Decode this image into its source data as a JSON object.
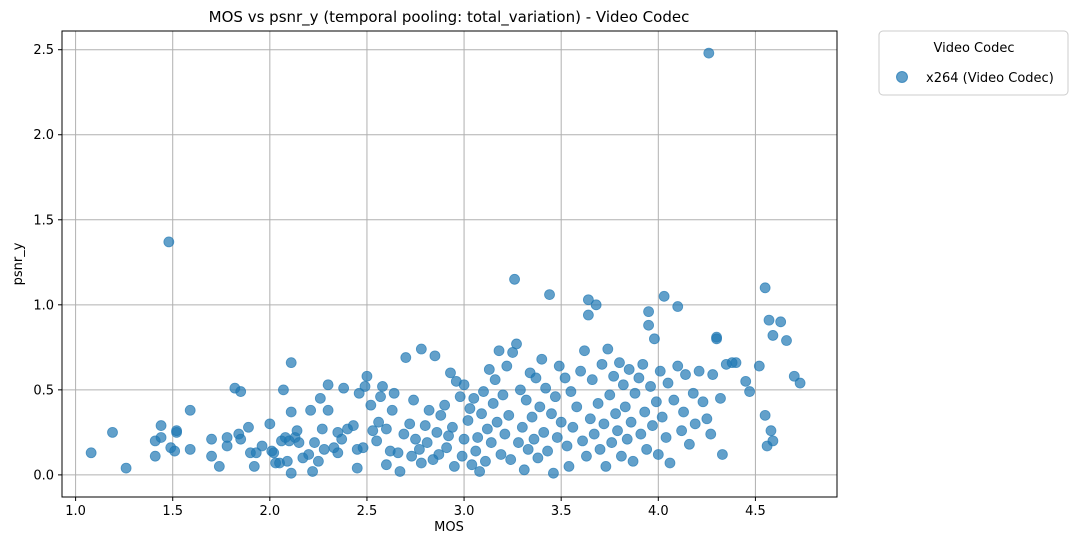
{
  "chart_data": {
    "type": "scatter",
    "title": "MOS vs psnr_y (temporal pooling: total_variation) - Video Codec",
    "xlabel": "MOS",
    "ylabel": "psnr_y",
    "xlim": [
      0.93,
      4.92
    ],
    "ylim": [
      -0.13,
      2.61
    ],
    "xticks": [
      1.0,
      1.5,
      2.0,
      2.5,
      3.0,
      3.5,
      4.0,
      4.5
    ],
    "yticks": [
      0.0,
      0.5,
      1.0,
      1.5,
      2.0,
      2.5
    ],
    "xtick_labels": [
      "1.0",
      "1.5",
      "2.0",
      "2.5",
      "3.0",
      "3.5",
      "4.0",
      "4.5"
    ],
    "ytick_labels": [
      "0.0",
      "0.5",
      "1.0",
      "1.5",
      "2.0",
      "2.5"
    ],
    "grid": true,
    "legend": {
      "title": "Video Codec",
      "placement": "outside-top-right"
    },
    "series": [
      {
        "name": "x264 (Video Codec)",
        "color": "#1f77b4",
        "points": [
          [
            1.08,
            0.13
          ],
          [
            1.19,
            0.25
          ],
          [
            1.26,
            0.04
          ],
          [
            1.41,
            0.11
          ],
          [
            1.41,
            0.2
          ],
          [
            1.44,
            0.22
          ],
          [
            1.44,
            0.29
          ],
          [
            1.48,
            1.37
          ],
          [
            1.49,
            0.16
          ],
          [
            1.51,
            0.14
          ],
          [
            1.52,
            0.25
          ],
          [
            1.52,
            0.26
          ],
          [
            1.59,
            0.15
          ],
          [
            1.59,
            0.38
          ],
          [
            1.7,
            0.11
          ],
          [
            1.7,
            0.21
          ],
          [
            1.74,
            0.05
          ],
          [
            1.78,
            0.22
          ],
          [
            1.78,
            0.17
          ],
          [
            1.82,
            0.51
          ],
          [
            1.84,
            0.24
          ],
          [
            1.85,
            0.49
          ],
          [
            1.85,
            0.21
          ],
          [
            1.89,
            0.28
          ],
          [
            1.9,
            0.13
          ],
          [
            1.92,
            0.05
          ],
          [
            1.93,
            0.13
          ],
          [
            1.96,
            0.17
          ],
          [
            2.0,
            0.3
          ],
          [
            2.01,
            0.14
          ],
          [
            2.02,
            0.13
          ],
          [
            2.03,
            0.07
          ],
          [
            2.05,
            0.07
          ],
          [
            2.06,
            0.2
          ],
          [
            2.07,
            0.5
          ],
          [
            2.08,
            0.22
          ],
          [
            2.09,
            0.08
          ],
          [
            2.1,
            0.2
          ],
          [
            2.11,
            0.01
          ],
          [
            2.11,
            0.37
          ],
          [
            2.11,
            0.66
          ],
          [
            2.13,
            0.22
          ],
          [
            2.14,
            0.26
          ],
          [
            2.15,
            0.19
          ],
          [
            2.17,
            0.1
          ],
          [
            2.2,
            0.12
          ],
          [
            2.21,
            0.38
          ],
          [
            2.22,
            0.02
          ],
          [
            2.23,
            0.19
          ],
          [
            2.25,
            0.08
          ],
          [
            2.26,
            0.45
          ],
          [
            2.27,
            0.27
          ],
          [
            2.28,
            0.15
          ],
          [
            2.3,
            0.53
          ],
          [
            2.3,
            0.38
          ],
          [
            2.33,
            0.16
          ],
          [
            2.35,
            0.13
          ],
          [
            2.35,
            0.25
          ],
          [
            2.37,
            0.21
          ],
          [
            2.38,
            0.51
          ],
          [
            2.4,
            0.27
          ],
          [
            2.43,
            0.29
          ],
          [
            2.45,
            0.15
          ],
          [
            2.45,
            0.04
          ],
          [
            2.46,
            0.48
          ],
          [
            2.48,
            0.16
          ],
          [
            2.49,
            0.52
          ],
          [
            2.5,
            0.58
          ],
          [
            2.52,
            0.41
          ],
          [
            2.53,
            0.26
          ],
          [
            2.55,
            0.2
          ],
          [
            2.56,
            0.31
          ],
          [
            2.57,
            0.46
          ],
          [
            2.58,
            0.52
          ],
          [
            2.6,
            0.06
          ],
          [
            2.6,
            0.27
          ],
          [
            2.62,
            0.14
          ],
          [
            2.63,
            0.38
          ],
          [
            2.64,
            0.48
          ],
          [
            2.66,
            0.13
          ],
          [
            2.67,
            0.02
          ],
          [
            2.69,
            0.24
          ],
          [
            2.7,
            0.69
          ],
          [
            2.72,
            0.3
          ],
          [
            2.73,
            0.11
          ],
          [
            2.74,
            0.44
          ],
          [
            2.75,
            0.21
          ],
          [
            2.77,
            0.15
          ],
          [
            2.78,
            0.74
          ],
          [
            2.78,
            0.07
          ],
          [
            2.8,
            0.29
          ],
          [
            2.81,
            0.19
          ],
          [
            2.82,
            0.38
          ],
          [
            2.84,
            0.09
          ],
          [
            2.85,
            0.7
          ],
          [
            2.86,
            0.25
          ],
          [
            2.87,
            0.12
          ],
          [
            2.88,
            0.35
          ],
          [
            2.9,
            0.41
          ],
          [
            2.91,
            0.16
          ],
          [
            2.92,
            0.23
          ],
          [
            2.93,
            0.6
          ],
          [
            2.94,
            0.28
          ],
          [
            2.95,
            0.05
          ],
          [
            2.96,
            0.55
          ],
          [
            2.98,
            0.46
          ],
          [
            2.99,
            0.11
          ],
          [
            3.0,
            0.53
          ],
          [
            3.0,
            0.21
          ],
          [
            3.02,
            0.32
          ],
          [
            3.03,
            0.39
          ],
          [
            3.04,
            0.06
          ],
          [
            3.05,
            0.45
          ],
          [
            3.06,
            0.14
          ],
          [
            3.07,
            0.22
          ],
          [
            3.08,
            0.02
          ],
          [
            3.09,
            0.36
          ],
          [
            3.1,
            0.49
          ],
          [
            3.11,
            0.08
          ],
          [
            3.12,
            0.27
          ],
          [
            3.13,
            0.62
          ],
          [
            3.14,
            0.19
          ],
          [
            3.15,
            0.42
          ],
          [
            3.16,
            0.56
          ],
          [
            3.17,
            0.31
          ],
          [
            3.18,
            0.73
          ],
          [
            3.19,
            0.12
          ],
          [
            3.2,
            0.47
          ],
          [
            3.21,
            0.24
          ],
          [
            3.22,
            0.64
          ],
          [
            3.23,
            0.35
          ],
          [
            3.24,
            0.09
          ],
          [
            3.25,
            0.72
          ],
          [
            3.26,
            1.15
          ],
          [
            3.27,
            0.77
          ],
          [
            3.28,
            0.19
          ],
          [
            3.29,
            0.5
          ],
          [
            3.3,
            0.28
          ],
          [
            3.31,
            0.03
          ],
          [
            3.32,
            0.44
          ],
          [
            3.33,
            0.15
          ],
          [
            3.34,
            0.6
          ],
          [
            3.35,
            0.34
          ],
          [
            3.36,
            0.21
          ],
          [
            3.37,
            0.57
          ],
          [
            3.38,
            0.1
          ],
          [
            3.39,
            0.4
          ],
          [
            3.4,
            0.68
          ],
          [
            3.41,
            0.25
          ],
          [
            3.42,
            0.51
          ],
          [
            3.43,
            0.14
          ],
          [
            3.44,
            1.06
          ],
          [
            3.45,
            0.36
          ],
          [
            3.46,
            0.01
          ],
          [
            3.47,
            0.46
          ],
          [
            3.48,
            0.22
          ],
          [
            3.49,
            0.64
          ],
          [
            3.5,
            0.31
          ],
          [
            3.52,
            0.57
          ],
          [
            3.53,
            0.17
          ],
          [
            3.54,
            0.05
          ],
          [
            3.55,
            0.49
          ],
          [
            3.56,
            0.28
          ],
          [
            3.58,
            0.4
          ],
          [
            3.6,
            0.61
          ],
          [
            3.61,
            0.2
          ],
          [
            3.62,
            0.73
          ],
          [
            3.63,
            0.11
          ],
          [
            3.64,
            1.03
          ],
          [
            3.64,
            0.94
          ],
          [
            3.65,
            0.33
          ],
          [
            3.66,
            0.56
          ],
          [
            3.67,
            0.24
          ],
          [
            3.68,
            1.0
          ],
          [
            3.69,
            0.42
          ],
          [
            3.7,
            0.15
          ],
          [
            3.71,
            0.65
          ],
          [
            3.72,
            0.3
          ],
          [
            3.73,
            0.05
          ],
          [
            3.74,
            0.74
          ],
          [
            3.75,
            0.47
          ],
          [
            3.76,
            0.19
          ],
          [
            3.77,
            0.58
          ],
          [
            3.78,
            0.36
          ],
          [
            3.79,
            0.26
          ],
          [
            3.8,
            0.66
          ],
          [
            3.81,
            0.11
          ],
          [
            3.82,
            0.53
          ],
          [
            3.83,
            0.4
          ],
          [
            3.84,
            0.21
          ],
          [
            3.85,
            0.62
          ],
          [
            3.86,
            0.31
          ],
          [
            3.87,
            0.08
          ],
          [
            3.88,
            0.48
          ],
          [
            3.9,
            0.57
          ],
          [
            3.91,
            0.24
          ],
          [
            3.92,
            0.65
          ],
          [
            3.93,
            0.37
          ],
          [
            3.94,
            0.15
          ],
          [
            3.95,
            0.96
          ],
          [
            3.95,
            0.88
          ],
          [
            3.96,
            0.52
          ],
          [
            3.97,
            0.29
          ],
          [
            3.98,
            0.8
          ],
          [
            3.99,
            0.43
          ],
          [
            4.0,
            0.12
          ],
          [
            4.01,
            0.61
          ],
          [
            4.02,
            0.34
          ],
          [
            4.03,
            1.05
          ],
          [
            4.04,
            0.22
          ],
          [
            4.05,
            0.54
          ],
          [
            4.06,
            0.07
          ],
          [
            4.08,
            0.44
          ],
          [
            4.1,
            0.99
          ],
          [
            4.1,
            0.64
          ],
          [
            4.12,
            0.26
          ],
          [
            4.13,
            0.37
          ],
          [
            4.14,
            0.59
          ],
          [
            4.16,
            0.18
          ],
          [
            4.18,
            0.48
          ],
          [
            4.19,
            0.3
          ],
          [
            4.21,
            0.61
          ],
          [
            4.23,
            0.43
          ],
          [
            4.25,
            0.33
          ],
          [
            4.26,
            2.48
          ],
          [
            4.27,
            0.24
          ],
          [
            4.28,
            0.59
          ],
          [
            4.3,
            0.81
          ],
          [
            4.3,
            0.8
          ],
          [
            4.32,
            0.45
          ],
          [
            4.33,
            0.12
          ],
          [
            4.35,
            0.65
          ],
          [
            4.38,
            0.66
          ],
          [
            4.4,
            0.66
          ],
          [
            4.45,
            0.55
          ],
          [
            4.47,
            0.49
          ],
          [
            4.52,
            0.64
          ],
          [
            4.55,
            1.1
          ],
          [
            4.55,
            0.35
          ],
          [
            4.56,
            0.17
          ],
          [
            4.57,
            0.91
          ],
          [
            4.58,
            0.26
          ],
          [
            4.59,
            0.82
          ],
          [
            4.59,
            0.2
          ],
          [
            4.63,
            0.9
          ],
          [
            4.66,
            0.79
          ],
          [
            4.7,
            0.58
          ],
          [
            4.73,
            0.54
          ]
        ]
      }
    ]
  }
}
